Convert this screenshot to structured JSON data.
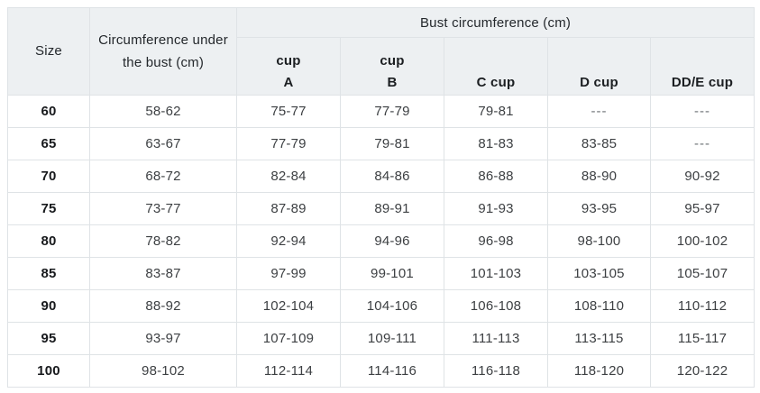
{
  "table": {
    "header": {
      "size_label": "Size",
      "underbust_label": "Circumference under the bust (cm)",
      "bust_group_label": "Bust circumference (cm)"
    },
    "cup_headers": [
      {
        "lines": [
          "cup",
          "A"
        ]
      },
      {
        "lines": [
          "cup",
          "B"
        ]
      },
      {
        "lines": [
          "C cup"
        ]
      },
      {
        "lines": [
          "D cup"
        ]
      },
      {
        "lines": [
          "DD/E cup"
        ]
      }
    ],
    "dash_value": "---",
    "rows": [
      {
        "size": "60",
        "underbust": "58-62",
        "cups": [
          "75-77",
          "77-79",
          "79-81",
          "---",
          "---"
        ]
      },
      {
        "size": "65",
        "underbust": "63-67",
        "cups": [
          "77-79",
          "79-81",
          "81-83",
          "83-85",
          "---"
        ]
      },
      {
        "size": "70",
        "underbust": "68-72",
        "cups": [
          "82-84",
          "84-86",
          "86-88",
          "88-90",
          "90-92"
        ]
      },
      {
        "size": "75",
        "underbust": "73-77",
        "cups": [
          "87-89",
          "89-91",
          "91-93",
          "93-95",
          "95-97"
        ]
      },
      {
        "size": "80",
        "underbust": "78-82",
        "cups": [
          "92-94",
          "94-96",
          "96-98",
          "98-100",
          "100-102"
        ]
      },
      {
        "size": "85",
        "underbust": "83-87",
        "cups": [
          "97-99",
          "99-101",
          "101-103",
          "103-105",
          "105-107"
        ]
      },
      {
        "size": "90",
        "underbust": "88-92",
        "cups": [
          "102-104",
          "104-106",
          "106-108",
          "108-110",
          "110-112"
        ]
      },
      {
        "size": "95",
        "underbust": "93-97",
        "cups": [
          "107-109",
          "109-111",
          "111-113",
          "113-115",
          "115-117"
        ]
      },
      {
        "size": "100",
        "underbust": "98-102",
        "cups": [
          "112-114",
          "114-116",
          "116-118",
          "118-120",
          "120-122"
        ]
      }
    ]
  }
}
